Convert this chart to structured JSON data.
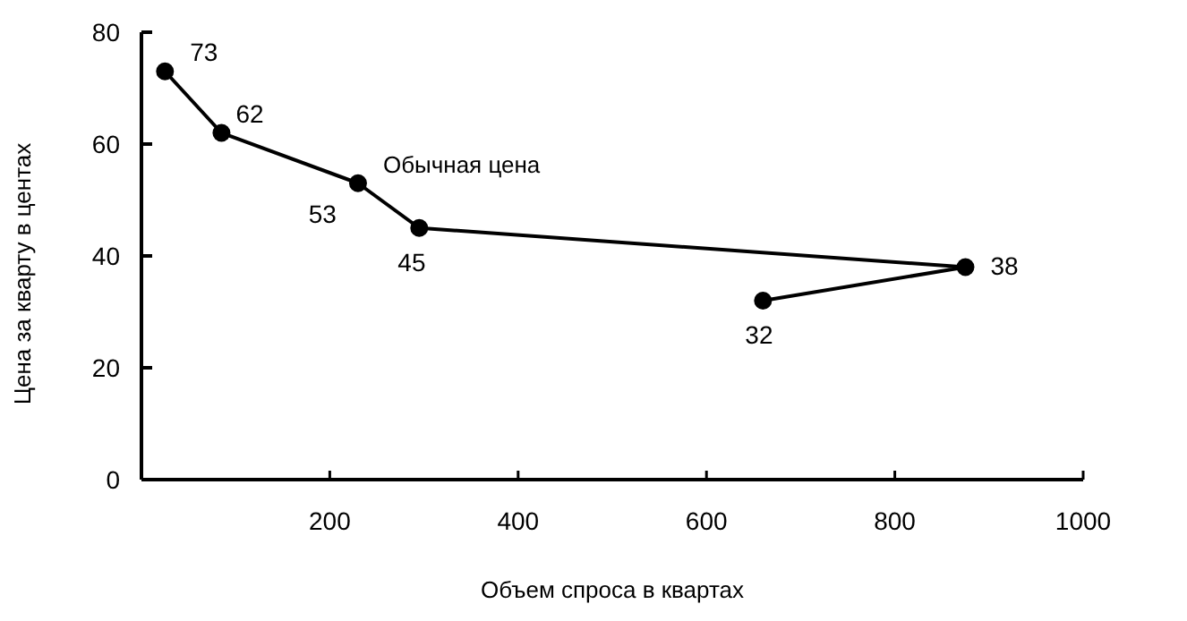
{
  "chart_data": {
    "type": "line",
    "xlabel": "Объем спроса в квартах",
    "ylabel": "Цена за кварту в центах",
    "x": [
      25,
      85,
      230,
      295,
      875,
      660
    ],
    "series": [
      {
        "color": "#000000",
        "values": [
          73,
          62,
          53,
          45,
          38,
          32
        ]
      }
    ],
    "xlim": [
      0,
      1000
    ],
    "xticks": [
      200,
      400,
      600,
      800,
      1000
    ],
    "ylim": [
      0,
      80
    ],
    "yticks": [
      0,
      20,
      40,
      60,
      80
    ],
    "data_labels": true,
    "marker": "circle",
    "grid": false,
    "line_style": "solid",
    "annotations": [
      {
        "text": "Обычная цена",
        "x": 230,
        "y": 53
      }
    ]
  }
}
